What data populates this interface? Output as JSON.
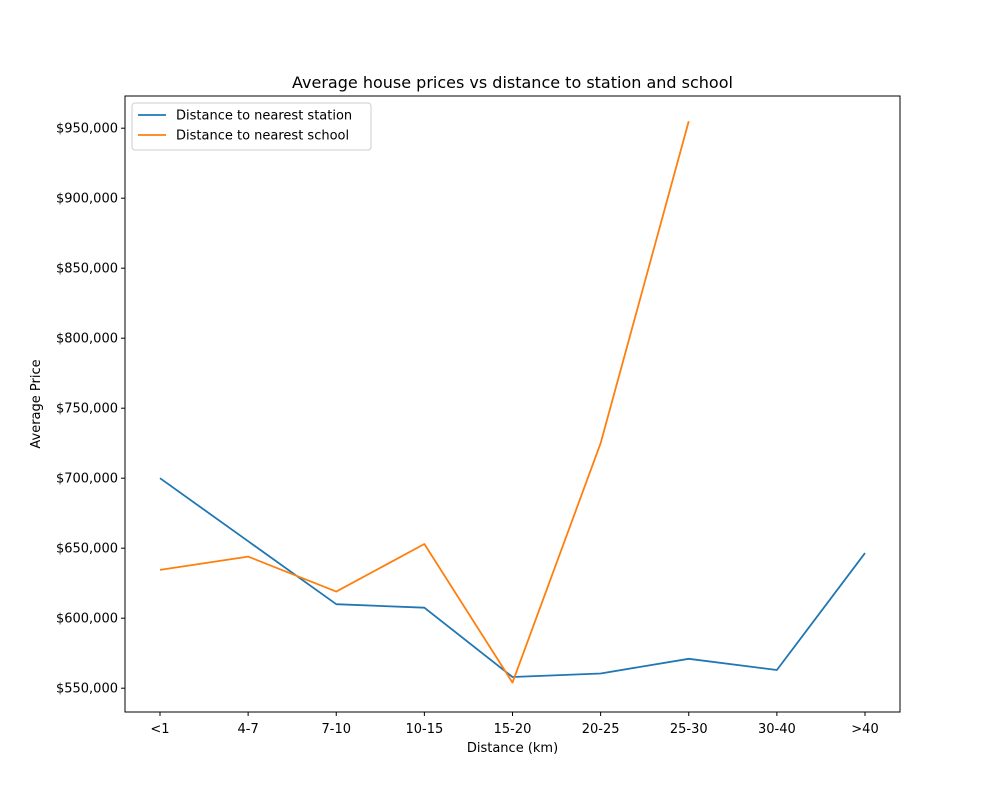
{
  "chart_data": {
    "type": "line",
    "title": "Average house prices vs distance to station and school",
    "xlabel": "Distance (km)",
    "ylabel": "Average Price",
    "categories": [
      "<1",
      "4-7",
      "7-10",
      "10-15",
      "15-20",
      "20-25",
      "25-30",
      "30-40",
      ">40"
    ],
    "ylim": [
      533000,
      973000
    ],
    "yticks": [
      550000,
      600000,
      650000,
      700000,
      750000,
      800000,
      850000,
      900000,
      950000
    ],
    "ytick_labels": [
      "$550,000",
      "$600,000",
      "$650,000",
      "$700,000",
      "$750,000",
      "$800,000",
      "$850,000",
      "$900,000",
      "$950,000"
    ],
    "grid": false,
    "legend_position": "top-left",
    "series": [
      {
        "name": "Distance to nearest station",
        "color": "#1f77b4",
        "values": [
          700000,
          655000,
          610000,
          607500,
          558000,
          560500,
          571000,
          563000,
          646500
        ]
      },
      {
        "name": "Distance to nearest school",
        "color": "#ff7f0e",
        "values": [
          634500,
          644000,
          619000,
          653000,
          554000,
          725000,
          955000,
          null,
          null
        ]
      }
    ]
  }
}
